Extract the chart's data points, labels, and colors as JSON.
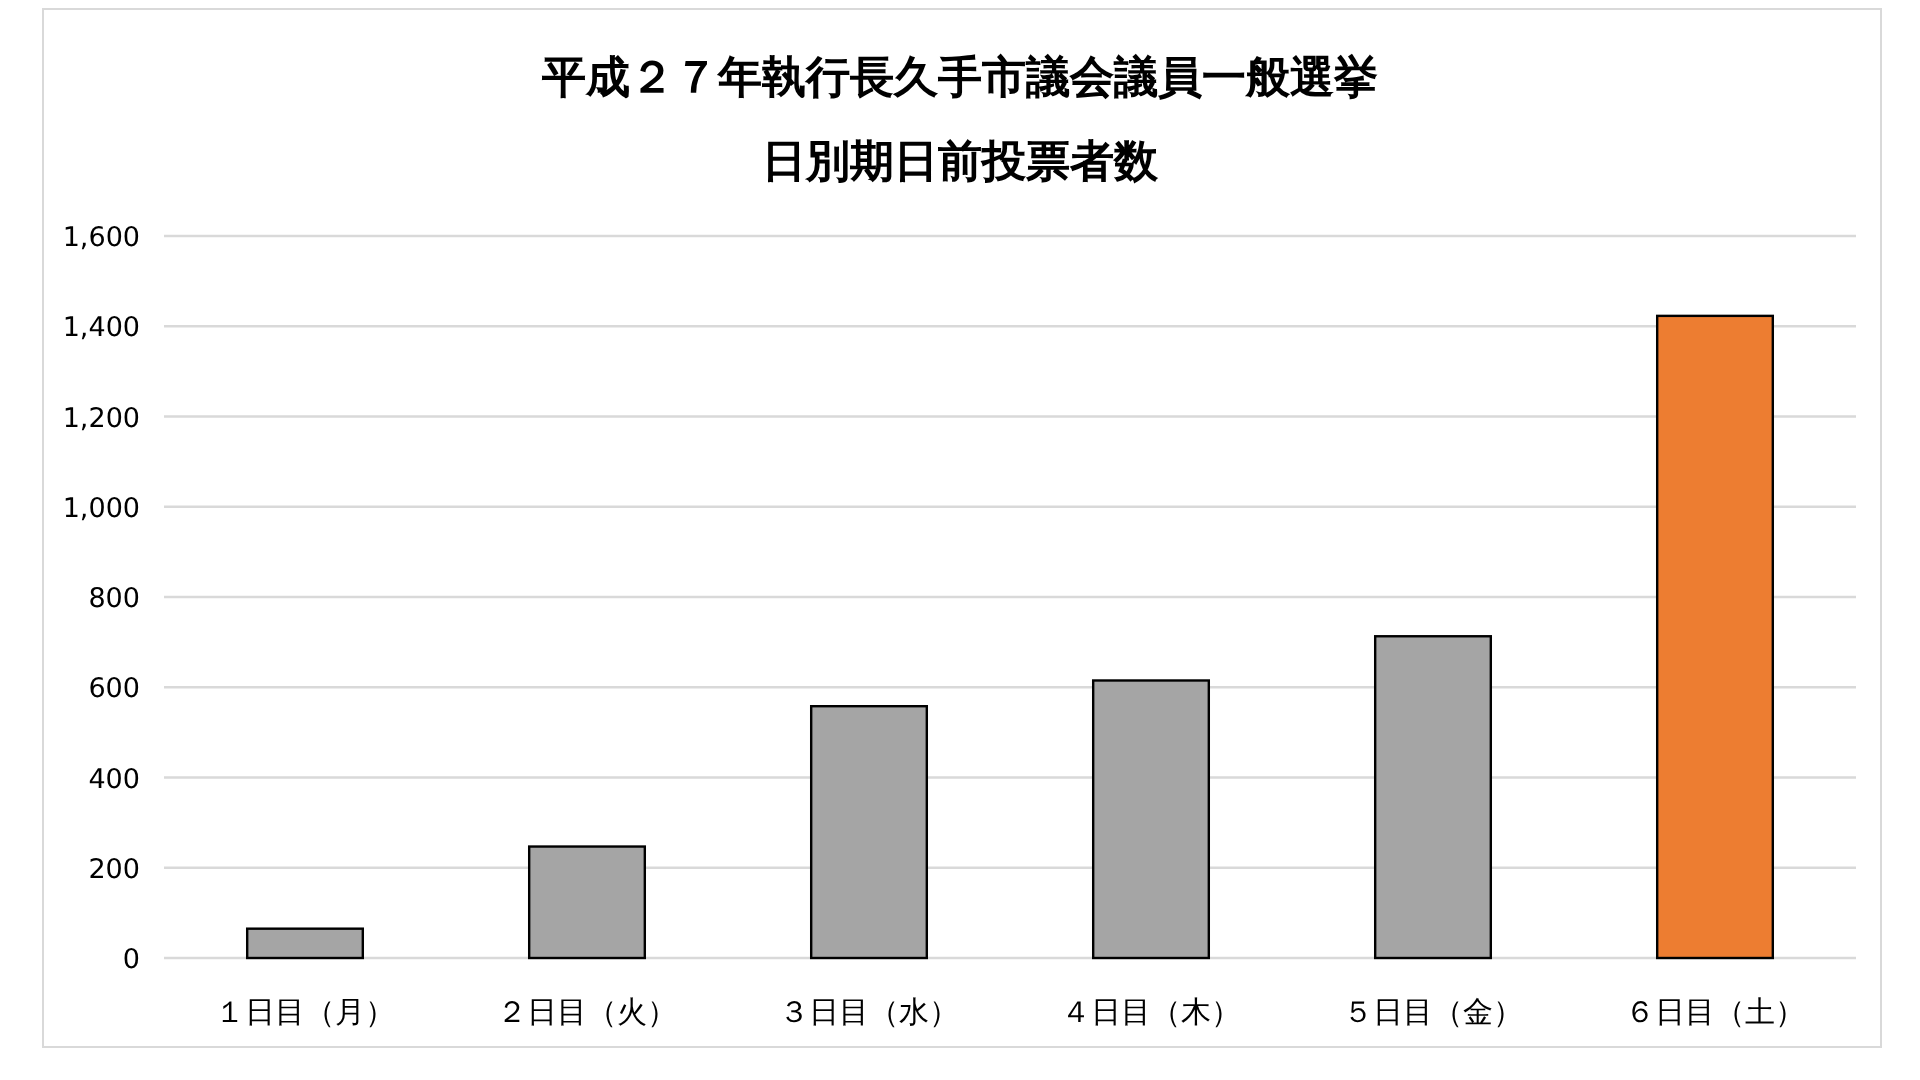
{
  "chart_data": {
    "type": "bar",
    "title": "平成２７年執行長久手市議会議員一般選挙",
    "subtitle": "日別期日前投票者数",
    "categories": [
      "１日目（月）",
      "２日目（火）",
      "３日目（水）",
      "４日目（木）",
      "５日目（金）",
      "６日目（土）"
    ],
    "values": [
      65,
      247,
      558,
      615,
      713,
      1423
    ],
    "colors": [
      "#a5a5a5",
      "#a5a5a5",
      "#a5a5a5",
      "#a5a5a5",
      "#a5a5a5",
      "#ed7d31"
    ],
    "ylim": [
      0,
      1600
    ],
    "yticks": [
      0,
      200,
      400,
      600,
      800,
      {
        "value": 1000,
        "label": "1,000"
      },
      {
        "value": 1200,
        "label": "1,200"
      },
      {
        "value": 1400,
        "label": "1,400"
      },
      {
        "value": 1600,
        "label": "1,600"
      }
    ],
    "grid": "y"
  }
}
